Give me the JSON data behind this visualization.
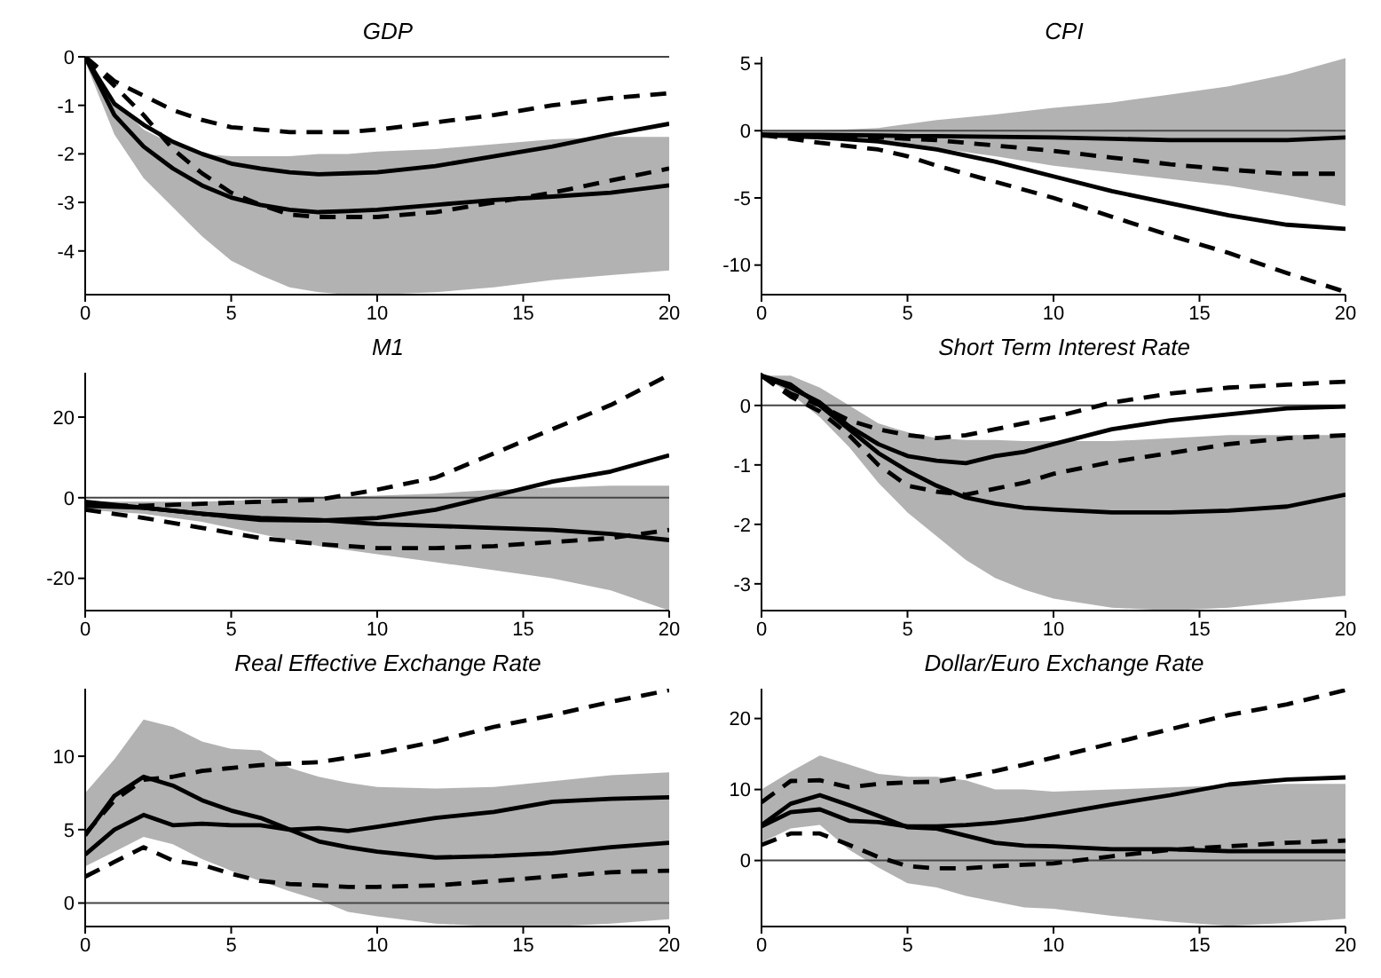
{
  "chart_data": [
    {
      "type": "line",
      "title": "GDP",
      "x": [
        0,
        1,
        2,
        3,
        4,
        5,
        6,
        7,
        8,
        9,
        10,
        12,
        14,
        16,
        18,
        20
      ],
      "xlim": [
        0,
        20
      ],
      "xticks": [
        0,
        5,
        10,
        15,
        20
      ],
      "ylim": [
        -4.9,
        0
      ],
      "yticks": [
        -4,
        -3,
        -2,
        -1,
        0
      ],
      "ref_lines": [
        {
          "axis": "y",
          "value": 0
        }
      ],
      "series": [
        {
          "color": "#000000",
          "line_style": "solid",
          "values": [
            0,
            -1.2,
            -1.85,
            -2.3,
            -2.65,
            -2.9,
            -3.05,
            -3.15,
            -3.2,
            -3.18,
            -3.15,
            -3.05,
            -2.95,
            -2.88,
            -2.8,
            -2.65
          ],
          "lower": [
            -0.1,
            -1.6,
            -2.5,
            -3.1,
            -3.7,
            -4.2,
            -4.5,
            -4.75,
            -4.85,
            -4.9,
            -4.9,
            -4.85,
            -4.75,
            -4.6,
            -4.5,
            -4.4
          ],
          "upper": [
            0,
            -0.9,
            -1.5,
            -1.8,
            -2.0,
            -2.05,
            -2.05,
            -2.05,
            -2.0,
            -2.0,
            -1.95,
            -1.9,
            -1.8,
            -1.7,
            -1.65,
            -1.65
          ]
        },
        {
          "color": "#000000",
          "line_style": "solid",
          "values": [
            0,
            -0.97,
            -1.4,
            -1.75,
            -2.0,
            -2.2,
            -2.3,
            -2.38,
            -2.42,
            -2.4,
            -2.38,
            -2.25,
            -2.05,
            -1.85,
            -1.6,
            -1.38
          ]
        },
        {
          "color": "#000000",
          "line_style": "dashed",
          "values": [
            0,
            -0.5,
            -0.8,
            -1.1,
            -1.3,
            -1.45,
            -1.5,
            -1.55,
            -1.55,
            -1.55,
            -1.5,
            -1.35,
            -1.2,
            -1.0,
            -0.85,
            -0.75
          ]
        },
        {
          "color": "#000000",
          "line_style": "dashed",
          "values": [
            0,
            -0.6,
            -1.2,
            -1.9,
            -2.4,
            -2.8,
            -3.05,
            -3.25,
            -3.3,
            -3.3,
            -3.3,
            -3.2,
            -3.0,
            -2.8,
            -2.55,
            -2.3
          ]
        }
      ]
    },
    {
      "type": "line",
      "title": "CPI",
      "x": [
        0,
        2,
        4,
        5,
        6,
        8,
        10,
        12,
        14,
        16,
        18,
        20
      ],
      "xlim": [
        0,
        20
      ],
      "xticks": [
        0,
        5,
        10,
        15,
        20
      ],
      "ylim": [
        -12.2,
        5.5
      ],
      "yticks": [
        -10,
        -5,
        0,
        5
      ],
      "ref_lines": [
        {
          "axis": "y",
          "value": 0
        }
      ],
      "series": [
        {
          "color": "#000000",
          "line_style": "solid",
          "values": [
            -0.3,
            -0.3,
            -0.35,
            -0.4,
            -0.4,
            -0.45,
            -0.5,
            -0.6,
            -0.7,
            -0.7,
            -0.7,
            -0.5
          ],
          "lower": [
            -0.6,
            -0.5,
            -0.8,
            -1.0,
            -1.3,
            -1.9,
            -2.6,
            -3.1,
            -3.6,
            -4.1,
            -4.8,
            -5.6
          ],
          "upper": [
            0,
            0,
            0.2,
            0.5,
            0.8,
            1.2,
            1.7,
            2.1,
            2.7,
            3.3,
            4.2,
            5.4
          ]
        },
        {
          "color": "#000000",
          "line_style": "solid",
          "values": [
            -0.3,
            -0.5,
            -0.8,
            -1.1,
            -1.4,
            -2.3,
            -3.4,
            -4.5,
            -5.4,
            -6.3,
            -7.0,
            -7.3
          ]
        },
        {
          "color": "#000000",
          "line_style": "dashed",
          "values": [
            -0.3,
            -0.4,
            -0.5,
            -0.6,
            -0.7,
            -1.1,
            -1.5,
            -2.0,
            -2.5,
            -2.9,
            -3.2,
            -3.2
          ]
        },
        {
          "color": "#000000",
          "line_style": "dashed",
          "values": [
            -0.3,
            -0.9,
            -1.4,
            -1.9,
            -2.6,
            -3.8,
            -5.0,
            -6.4,
            -7.8,
            -9.1,
            -10.6,
            -12.0
          ]
        }
      ]
    },
    {
      "type": "line",
      "title": "M1",
      "x": [
        0,
        2,
        4,
        6,
        8,
        10,
        12,
        14,
        16,
        18,
        20
      ],
      "xlim": [
        0,
        20
      ],
      "xticks": [
        0,
        5,
        10,
        15,
        20
      ],
      "ylim": [
        -28,
        31
      ],
      "yticks": [
        -20,
        0,
        20
      ],
      "ref_lines": [
        {
          "axis": "y",
          "value": 0
        }
      ],
      "series": [
        {
          "color": "#000000",
          "line_style": "solid",
          "values": [
            -2,
            -2.5,
            -4,
            -5,
            -5.5,
            -6.5,
            -7,
            -7.5,
            -8,
            -9,
            -10.5
          ],
          "lower": [
            -3,
            -4,
            -6,
            -9,
            -12,
            -14,
            -16,
            -18,
            -20,
            -23,
            -28
          ],
          "upper": [
            -1,
            -1,
            -1,
            -0.5,
            0,
            0.5,
            1,
            2,
            2.5,
            3,
            3
          ]
        },
        {
          "color": "#000000",
          "line_style": "solid",
          "values": [
            -1,
            -2.5,
            -4,
            -5.5,
            -5.7,
            -5,
            -3,
            0.5,
            4,
            6.5,
            10.5
          ]
        },
        {
          "color": "#000000",
          "line_style": "dashed",
          "values": [
            -2,
            -2,
            -1.5,
            -1,
            -0.5,
            2,
            5,
            11,
            17,
            23,
            30.5
          ]
        },
        {
          "color": "#000000",
          "line_style": "dashed",
          "values": [
            -3,
            -5,
            -7.5,
            -10,
            -11.5,
            -12.5,
            -12.5,
            -12,
            -11,
            -10,
            -8
          ]
        }
      ]
    },
    {
      "type": "line",
      "title": "Short Term Interest Rate",
      "x": [
        0,
        1,
        2,
        3,
        4,
        5,
        6,
        7,
        8,
        9,
        10,
        12,
        14,
        16,
        18,
        20
      ],
      "xlim": [
        0,
        20
      ],
      "xticks": [
        0,
        5,
        10,
        15,
        20
      ],
      "ylim": [
        -3.45,
        0.55
      ],
      "yticks": [
        -3,
        -2,
        -1,
        0
      ],
      "ref_lines": [
        {
          "axis": "y",
          "value": 0
        }
      ],
      "series": [
        {
          "color": "#000000",
          "line_style": "solid",
          "values": [
            0.5,
            0.35,
            0,
            -0.4,
            -0.8,
            -1.1,
            -1.35,
            -1.55,
            -1.65,
            -1.72,
            -1.75,
            -1.8,
            -1.8,
            -1.77,
            -1.7,
            -1.5
          ],
          "lower": [
            0.5,
            0.2,
            -0.2,
            -0.7,
            -1.3,
            -1.8,
            -2.2,
            -2.6,
            -2.9,
            -3.1,
            -3.25,
            -3.4,
            -3.45,
            -3.4,
            -3.3,
            -3.2
          ],
          "upper": [
            0.5,
            0.5,
            0.3,
            0,
            -0.3,
            -0.45,
            -0.55,
            -0.58,
            -0.58,
            -0.6,
            -0.6,
            -0.6,
            -0.55,
            -0.5,
            -0.5,
            -0.5
          ]
        },
        {
          "color": "#000000",
          "line_style": "solid",
          "values": [
            0.5,
            0.3,
            0.05,
            -0.35,
            -0.65,
            -0.85,
            -0.93,
            -0.97,
            -0.85,
            -0.78,
            -0.65,
            -0.4,
            -0.25,
            -0.15,
            -0.05,
            -0.02
          ]
        },
        {
          "color": "#000000",
          "line_style": "dashed",
          "values": [
            0.5,
            0.2,
            0,
            -0.25,
            -0.4,
            -0.5,
            -0.55,
            -0.5,
            -0.4,
            -0.3,
            -0.2,
            0.05,
            0.2,
            0.3,
            0.35,
            0.4
          ]
        },
        {
          "color": "#000000",
          "line_style": "dashed",
          "values": [
            0.5,
            0.15,
            -0.1,
            -0.5,
            -1.0,
            -1.35,
            -1.45,
            -1.5,
            -1.4,
            -1.3,
            -1.15,
            -0.95,
            -0.8,
            -0.65,
            -0.55,
            -0.5
          ]
        }
      ]
    },
    {
      "type": "line",
      "title": "Real Effective Exchange Rate",
      "x": [
        0,
        1,
        2,
        3,
        4,
        5,
        6,
        7,
        8,
        9,
        10,
        12,
        14,
        16,
        18,
        20
      ],
      "xlim": [
        0,
        20
      ],
      "xticks": [
        0,
        5,
        10,
        15,
        20
      ],
      "ylim": [
        -1.6,
        14.6
      ],
      "yticks": [
        0,
        5,
        10
      ],
      "ref_lines": [
        {
          "axis": "y",
          "value": 0
        }
      ],
      "series": [
        {
          "color": "#000000",
          "line_style": "solid",
          "values": [
            4.6,
            7.3,
            8.6,
            8.0,
            7.0,
            6.3,
            5.8,
            5.0,
            4.2,
            3.8,
            3.5,
            3.1,
            3.2,
            3.4,
            3.8,
            4.1
          ],
          "lower": [
            2.5,
            3.5,
            4.5,
            4.0,
            3.0,
            2.2,
            1.5,
            0.8,
            0.2,
            -0.6,
            -0.9,
            -1.4,
            -1.6,
            -1.6,
            -1.4,
            -1.1
          ],
          "upper": [
            7.5,
            9.8,
            12.5,
            12.0,
            11.0,
            10.5,
            10.4,
            9.2,
            8.6,
            8.2,
            7.9,
            7.8,
            7.9,
            8.3,
            8.7,
            8.9
          ]
        },
        {
          "color": "#000000",
          "line_style": "solid",
          "values": [
            3.3,
            5.0,
            6.0,
            5.3,
            5.4,
            5.3,
            5.3,
            5.0,
            5.1,
            4.9,
            5.2,
            5.8,
            6.2,
            6.9,
            7.1,
            7.2
          ]
        },
        {
          "color": "#000000",
          "line_style": "dashed",
          "values": [
            4.7,
            7.0,
            8.4,
            8.6,
            9.0,
            9.2,
            9.4,
            9.5,
            9.6,
            9.9,
            10.2,
            11.0,
            12.0,
            12.8,
            13.7,
            14.5
          ]
        },
        {
          "color": "#000000",
          "line_style": "dashed",
          "values": [
            1.8,
            2.8,
            3.8,
            2.9,
            2.6,
            2.0,
            1.5,
            1.3,
            1.2,
            1.1,
            1.1,
            1.2,
            1.5,
            1.8,
            2.1,
            2.2
          ]
        }
      ]
    },
    {
      "type": "line",
      "title": "Dollar/Euro Exchange Rate",
      "x": [
        0,
        1,
        2,
        3,
        4,
        5,
        6,
        7,
        8,
        9,
        10,
        12,
        14,
        16,
        18,
        20
      ],
      "xlim": [
        0,
        20
      ],
      "xticks": [
        0,
        5,
        10,
        15,
        20
      ],
      "ylim": [
        -9.3,
        24.2
      ],
      "yticks": [
        0,
        10,
        20
      ],
      "ref_lines": [
        {
          "axis": "y",
          "value": 0
        }
      ],
      "series": [
        {
          "color": "#000000",
          "line_style": "solid",
          "values": [
            5.0,
            8.0,
            9.2,
            7.8,
            6.3,
            4.7,
            4.5,
            3.5,
            2.5,
            2.1,
            2.0,
            1.6,
            1.6,
            1.3,
            1.3,
            1.3
          ],
          "lower": [
            2.5,
            4.5,
            5.0,
            1.5,
            -1.0,
            -3.2,
            -3.8,
            -5.0,
            -5.8,
            -6.6,
            -6.8,
            -7.8,
            -8.6,
            -9.2,
            -8.8,
            -8.2
          ],
          "upper": [
            10,
            12.5,
            14.8,
            13.5,
            12.2,
            11.8,
            11.8,
            11.3,
            10.0,
            10.0,
            9.7,
            10.0,
            10.3,
            10.6,
            10.8,
            10.8
          ]
        },
        {
          "color": "#000000",
          "line_style": "solid",
          "values": [
            4.8,
            6.8,
            7.2,
            5.6,
            5.4,
            4.8,
            4.8,
            5.0,
            5.3,
            5.8,
            6.5,
            7.9,
            9.2,
            10.7,
            11.4,
            11.7
          ]
        },
        {
          "color": "#000000",
          "line_style": "dashed",
          "values": [
            8.2,
            11.2,
            11.3,
            10.3,
            10.8,
            11.0,
            11.1,
            11.8,
            12.6,
            13.5,
            14.5,
            16.5,
            18.5,
            20.5,
            22.0,
            24.0
          ]
        },
        {
          "color": "#000000",
          "line_style": "dashed",
          "values": [
            2.2,
            3.8,
            3.8,
            2.2,
            0.5,
            -0.8,
            -1.1,
            -1.1,
            -0.8,
            -0.6,
            -0.4,
            0.6,
            1.5,
            2.0,
            2.5,
            2.8
          ]
        }
      ]
    }
  ]
}
